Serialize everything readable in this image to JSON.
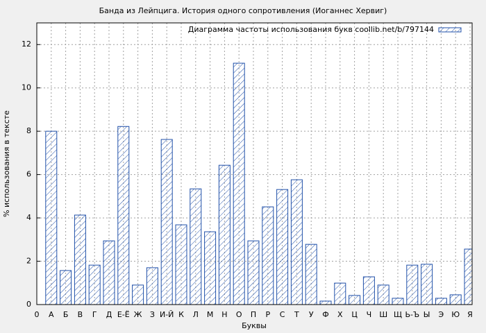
{
  "chart_data": {
    "type": "bar",
    "title": "Банда из Лейпцига. История одного сопротивления (Иоганнес Хервиг)",
    "x_label": "Буквы",
    "y_label": "% использования в тексте",
    "categories": [
      "0",
      "А",
      "Б",
      "В",
      "Г",
      "Д",
      "Е-Ё",
      "Ж",
      "З",
      "И-Й",
      "К",
      "Л",
      "М",
      "Н",
      "О",
      "П",
      "Р",
      "С",
      "Т",
      "У",
      "Ф",
      "Х",
      "Ц",
      "Ч",
      "Ш",
      "Щ",
      "Ь-Ъ",
      "Ы",
      "Э",
      "Ю",
      "Я"
    ],
    "series": [
      {
        "name": "Диаграмма частоты использования букв coollib.net/b/797144",
        "color": "#1f4fa8",
        "values": [
          null,
          8.0,
          1.57,
          4.13,
          1.82,
          2.94,
          8.22,
          0.9,
          1.7,
          7.62,
          3.68,
          5.34,
          3.36,
          6.43,
          11.14,
          2.94,
          4.51,
          5.31,
          5.76,
          2.78,
          0.16,
          0.99,
          0.42,
          1.28,
          0.9,
          0.29,
          1.82,
          1.86,
          0.29,
          0.45,
          2.56
        ]
      }
    ],
    "ylim": [
      0,
      13
    ],
    "yticks": [
      0,
      2,
      4,
      6,
      8,
      10,
      12
    ],
    "grid": true,
    "legend": "top-right"
  }
}
